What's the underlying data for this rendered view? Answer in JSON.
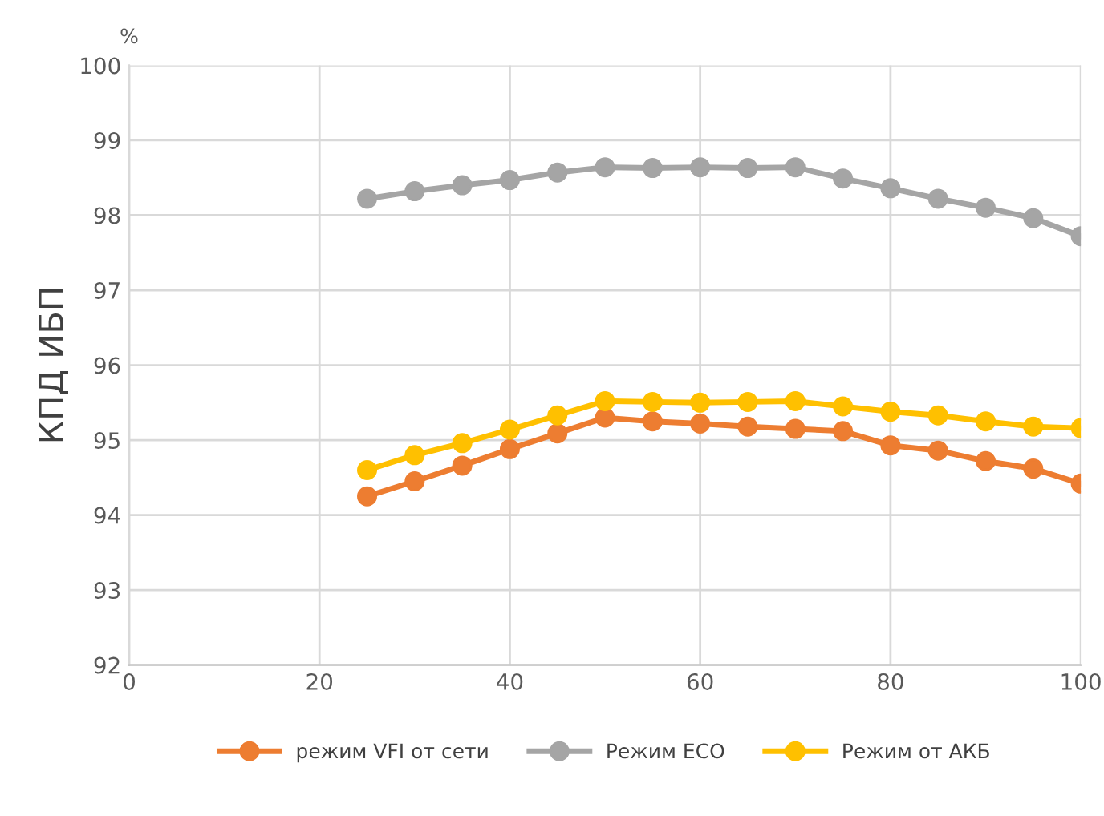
{
  "chart_data": {
    "type": "line",
    "ylabel": "КПД ИБП",
    "annotations": [
      "%"
    ],
    "x": [
      25,
      30,
      35,
      40,
      45,
      50,
      55,
      60,
      65,
      70,
      75,
      80,
      85,
      90,
      95,
      100
    ],
    "series": [
      {
        "name": "режим VFI от сети",
        "color": "#ed7d31",
        "values": [
          94.25,
          94.45,
          94.66,
          94.88,
          95.09,
          95.3,
          95.25,
          95.22,
          95.18,
          95.15,
          95.12,
          94.93,
          94.86,
          94.72,
          94.62,
          94.42
        ]
      },
      {
        "name": "Режим ECO",
        "color": "#a5a5a5",
        "values": [
          98.22,
          98.32,
          98.4,
          98.47,
          98.57,
          98.64,
          98.63,
          98.64,
          98.63,
          98.64,
          98.49,
          98.36,
          98.22,
          98.1,
          97.96,
          97.72
        ]
      },
      {
        "name": "Режим от АКБ",
        "color": "#ffc000",
        "values": [
          94.6,
          94.8,
          94.96,
          95.14,
          95.33,
          95.52,
          95.51,
          95.5,
          95.51,
          95.52,
          95.45,
          95.38,
          95.33,
          95.25,
          95.18,
          95.16
        ]
      }
    ],
    "xlim": [
      0,
      100
    ],
    "xticks": [
      0,
      20,
      40,
      60,
      80,
      100
    ],
    "ylim": [
      92,
      100
    ],
    "yticks": [
      92,
      93,
      94,
      95,
      96,
      97,
      98,
      99,
      100
    ],
    "grid": true,
    "legend": "bottom",
    "marker": "circle",
    "line_style": "solid"
  }
}
